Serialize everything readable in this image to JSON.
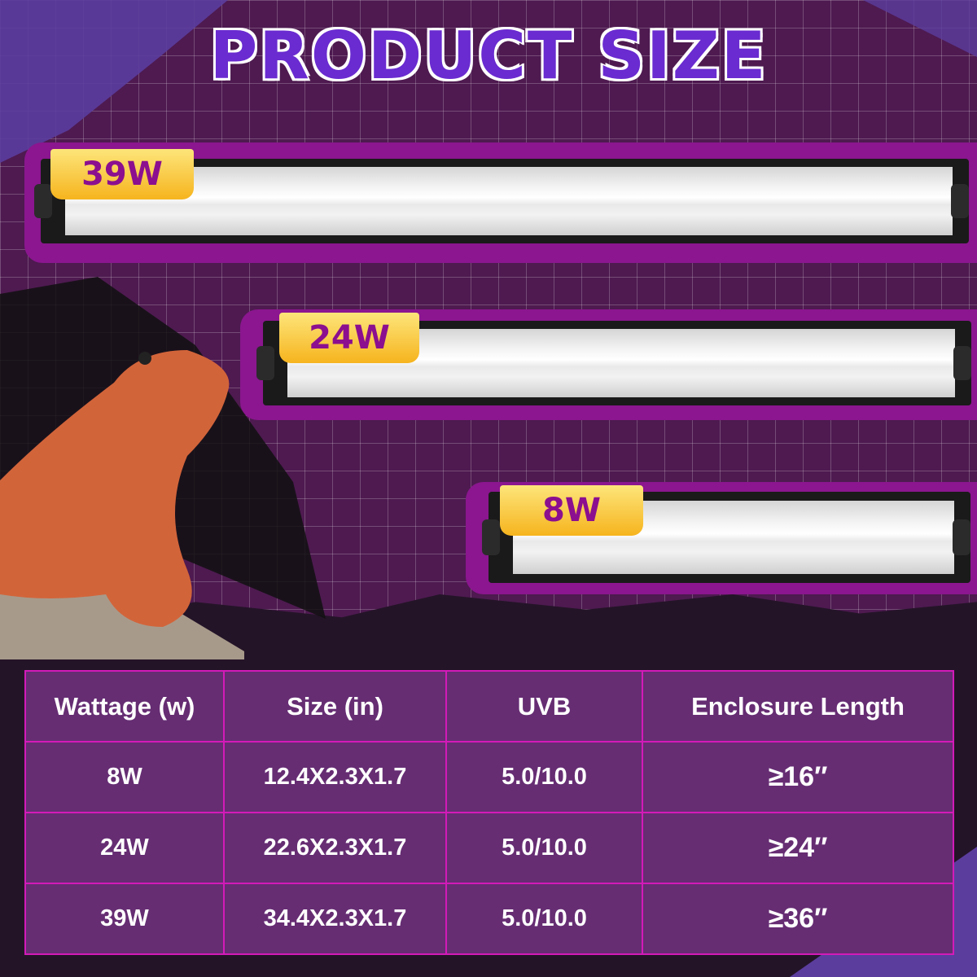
{
  "title": "PRODUCT SIZE",
  "lamps": [
    {
      "label": "39W"
    },
    {
      "label": "24W"
    },
    {
      "label": "8W"
    }
  ],
  "table": {
    "headers": [
      "Wattage (w)",
      "Size (in)",
      "UVB",
      "Enclosure Length"
    ],
    "rows": [
      [
        "8W",
        "12.4X2.3X1.7",
        "5.0/10.0",
        "≥16″"
      ],
      [
        "24W",
        "22.6X2.3X1.7",
        "5.0/10.0",
        "≥24″"
      ],
      [
        "39W",
        "34.4X2.3X1.7",
        "5.0/10.0",
        "≥36″"
      ]
    ]
  },
  "colors": {
    "title": "#6a2bd0",
    "table_bg": "#662d73",
    "table_border": "#d31ab8",
    "badge": "#f6b41e",
    "badge_text": "#8b0f8f"
  }
}
